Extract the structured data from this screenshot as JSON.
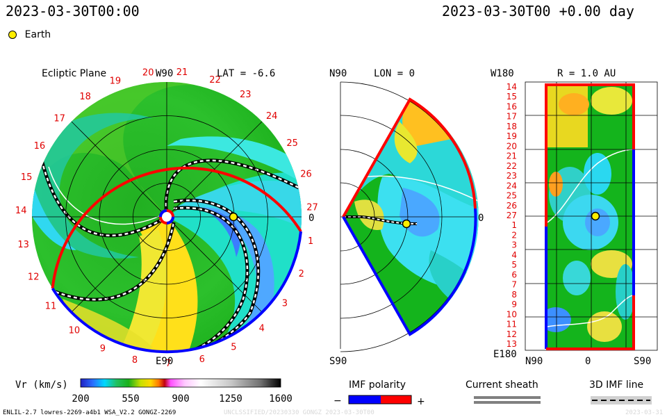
{
  "header": {
    "left_time": "2023-03-30T00:00",
    "right_time": "2023-03-30T00 +0.00 day"
  },
  "legend": {
    "earth_label": "Earth"
  },
  "ecliptic": {
    "title": "Ecliptic Plane",
    "top_label": "W90",
    "bottom_label": "E90",
    "lat_label": "LAT = -6.6",
    "zero_label": "0",
    "carrington_ticks": [
      "27",
      "1",
      "2",
      "3",
      "4",
      "5",
      "6",
      "7",
      "8",
      "9",
      "10",
      "11",
      "12",
      "13",
      "14",
      "15",
      "16",
      "17",
      "18",
      "19",
      "20",
      "21",
      "22",
      "23",
      "24",
      "25",
      "26"
    ]
  },
  "meridional": {
    "top_left": "N90",
    "lon_label": "LON = 0",
    "bottom_left": "S90",
    "zero_label": "0"
  },
  "radial": {
    "top_left": "W180",
    "r_label": "R = 1.0 AU",
    "bottom_left": "E180",
    "x_left": "N90",
    "x_mid": "0",
    "x_right": "S90",
    "y_labels": [
      "14",
      "15",
      "16",
      "17",
      "18",
      "19",
      "20",
      "21",
      "22",
      "23",
      "24",
      "25",
      "26",
      "27",
      "1",
      "2",
      "3",
      "4",
      "5",
      "6",
      "7",
      "8",
      "9",
      "10",
      "11",
      "12",
      "13"
    ]
  },
  "colorbar": {
    "label": "Vr (km/s)",
    "ticks": [
      "200",
      "550",
      "900",
      "1250",
      "1600"
    ]
  },
  "imf_polarity": {
    "label": "IMF polarity",
    "minus": "−",
    "plus": "+"
  },
  "current_sheath": {
    "label": "Current sheath"
  },
  "imf_line": {
    "label": "3D IMF line"
  },
  "footer": {
    "left": "ENLIL-2.7 lowres-2269-a4b1 WSA_V2.2 GONGZ-2269",
    "mid": "UNCLSSIFIED/20230330 GONGZ 2023-03-30T00",
    "right": "2023-03-31"
  },
  "colors": {
    "polarity_negative": "#0000ff",
    "polarity_positive": "#ff0000",
    "earth": "#ffee00"
  }
}
